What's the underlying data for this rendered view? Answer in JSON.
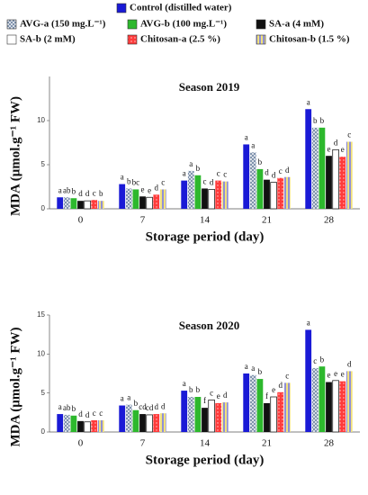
{
  "chart_data": [
    {
      "type": "bar",
      "title": "Season 2019",
      "xlabel": "Storage period (day)",
      "ylabel": "MDA (μmol.g⁻¹ FW)",
      "categories": [
        "0",
        "7",
        "14",
        "21",
        "28"
      ],
      "ylim": [
        0,
        15
      ],
      "yticks": [
        0,
        5,
        10
      ],
      "series": [
        {
          "name": "Control (distilled water)",
          "color": "#1a1ad6",
          "pattern": "solid",
          "values": [
            1.3,
            2.8,
            3.2,
            7.3,
            11.3
          ],
          "letters": [
            "a",
            "a",
            "a",
            "a",
            "a"
          ]
        },
        {
          "name": "AVG-a (150 mg.L⁻¹)",
          "color": "#7f93ad",
          "pattern": "checker",
          "values": [
            1.3,
            2.3,
            4.3,
            6.4,
            9.2
          ],
          "letters": [
            "ab",
            "b",
            "a",
            "a",
            "b"
          ]
        },
        {
          "name": "AVG-b (100 mg.L⁻¹)",
          "color": "#2db82d",
          "pattern": "solid",
          "values": [
            1.2,
            2.2,
            3.8,
            4.5,
            9.2
          ],
          "letters": [
            "b",
            "bc",
            "b",
            "b",
            "b"
          ]
        },
        {
          "name": "SA-a (4 mM)",
          "color": "#111111",
          "pattern": "solid",
          "values": [
            0.9,
            1.4,
            2.3,
            3.3,
            6.0
          ],
          "letters": [
            "d",
            "e",
            "c",
            "d",
            "e"
          ]
        },
        {
          "name": "SA-b (2 mM)",
          "color": "#ffffff",
          "pattern": "solid",
          "values": [
            0.9,
            1.3,
            2.2,
            3.0,
            6.7
          ],
          "letters": [
            "d",
            "e",
            "d",
            "d",
            "d"
          ]
        },
        {
          "name": "Chitosan-a (2.5 %)",
          "color": "#ff3b3b",
          "pattern": "dots",
          "values": [
            1.0,
            1.6,
            3.2,
            3.5,
            5.9
          ],
          "letters": [
            "c",
            "d",
            "c",
            "c",
            "e"
          ]
        },
        {
          "name": "Chitosan-b (1.5 %)",
          "color": "#8f8fd8",
          "pattern": "stripes",
          "values": [
            0.9,
            2.2,
            3.1,
            3.6,
            7.6
          ],
          "letters": [
            "b",
            "c",
            "c",
            "d",
            "c"
          ]
        }
      ]
    },
    {
      "type": "bar",
      "title": "Season 2020",
      "xlabel": "Storage period (day)",
      "ylabel": "MDA (μmol.g⁻¹ FW)",
      "categories": [
        "0",
        "7",
        "14",
        "21",
        "28"
      ],
      "ylim": [
        0,
        15
      ],
      "yticks": [
        0,
        5,
        10,
        15
      ],
      "series": [
        {
          "color": "#1a1ad6",
          "pattern": "solid",
          "values": [
            2.3,
            3.4,
            5.3,
            7.5,
            13.1
          ],
          "letters": [
            "a",
            "a",
            "a",
            "a",
            "a"
          ]
        },
        {
          "color": "#7f93ad",
          "pattern": "checker",
          "values": [
            2.2,
            3.5,
            4.5,
            7.3,
            8.2
          ],
          "letters": [
            "ab",
            "a",
            "b",
            "a",
            "c"
          ]
        },
        {
          "color": "#2db82d",
          "pattern": "solid",
          "values": [
            2.1,
            2.8,
            4.5,
            6.8,
            8.4
          ],
          "letters": [
            "b",
            "b",
            "b",
            "b",
            "b"
          ]
        },
        {
          "color": "#111111",
          "pattern": "solid",
          "values": [
            1.4,
            2.3,
            3.1,
            3.7,
            6.4
          ],
          "letters": [
            "d",
            "cd",
            "f",
            "f",
            "e"
          ]
        },
        {
          "color": "#ffffff",
          "pattern": "solid",
          "values": [
            1.3,
            2.2,
            4.1,
            4.5,
            6.6
          ],
          "letters": [
            "d",
            "cd",
            "c",
            "e",
            "e"
          ]
        },
        {
          "color": "#ff3b3b",
          "pattern": "dots",
          "values": [
            1.5,
            2.3,
            3.7,
            5.1,
            6.5
          ],
          "letters": [
            "c",
            "d",
            "e",
            "d",
            "e"
          ]
        },
        {
          "color": "#8f8fd8",
          "pattern": "stripes",
          "values": [
            1.5,
            2.4,
            3.8,
            6.3,
            7.8
          ],
          "letters": [
            "c",
            "d",
            "d",
            "c",
            "d"
          ]
        }
      ]
    }
  ]
}
